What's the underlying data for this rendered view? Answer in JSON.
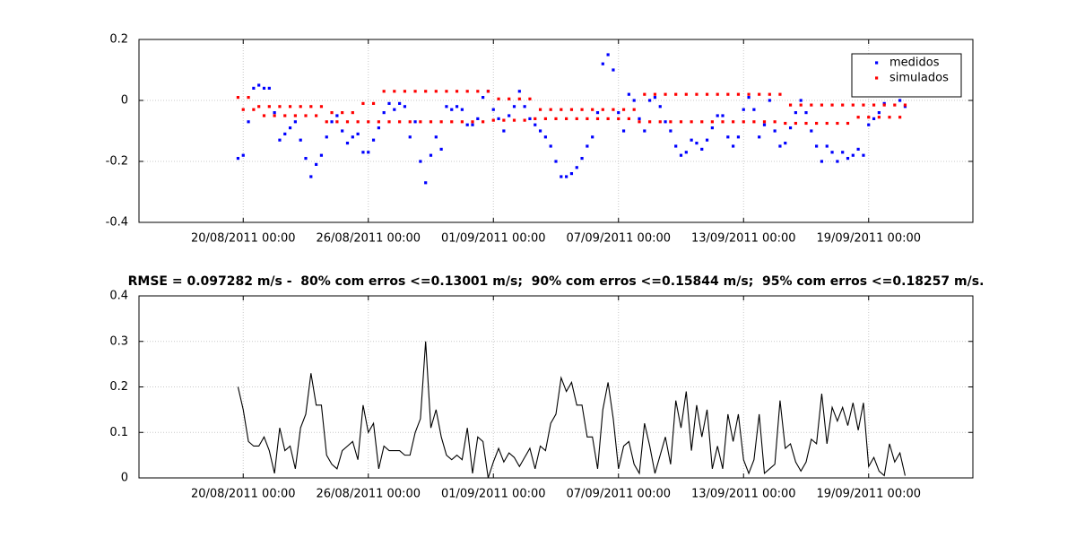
{
  "chart_data": [
    {
      "type": "scatter",
      "x": [
        "19/08/2011 18:00",
        "20/08/2011 00:00",
        "20/08/2011 06:00",
        "20/08/2011 12:00",
        "20/08/2011 18:00",
        "21/08/2011 00:00",
        "21/08/2011 06:00",
        "21/08/2011 12:00",
        "21/08/2011 18:00",
        "22/08/2011 00:00",
        "22/08/2011 06:00",
        "22/08/2011 12:00",
        "22/08/2011 18:00",
        "23/08/2011 00:00",
        "23/08/2011 06:00",
        "23/08/2011 12:00",
        "23/08/2011 18:00",
        "24/08/2011 00:00",
        "24/08/2011 06:00",
        "24/08/2011 12:00",
        "24/08/2011 18:00",
        "25/08/2011 00:00",
        "25/08/2011 06:00",
        "25/08/2011 12:00",
        "25/08/2011 18:00",
        "26/08/2011 00:00",
        "26/08/2011 06:00",
        "26/08/2011 12:00",
        "26/08/2011 18:00",
        "27/08/2011 00:00",
        "27/08/2011 06:00",
        "27/08/2011 12:00",
        "27/08/2011 18:00",
        "28/08/2011 00:00",
        "28/08/2011 06:00",
        "28/08/2011 12:00",
        "28/08/2011 18:00",
        "29/08/2011 00:00",
        "29/08/2011 06:00",
        "29/08/2011 12:00",
        "29/08/2011 18:00",
        "30/08/2011 00:00",
        "30/08/2011 06:00",
        "30/08/2011 12:00",
        "30/08/2011 18:00",
        "31/08/2011 00:00",
        "31/08/2011 06:00",
        "31/08/2011 12:00",
        "31/08/2011 18:00",
        "01/09/2011 00:00",
        "01/09/2011 06:00",
        "01/09/2011 12:00",
        "01/09/2011 18:00",
        "02/09/2011 00:00",
        "02/09/2011 06:00",
        "02/09/2011 12:00",
        "02/09/2011 18:00",
        "03/09/2011 00:00",
        "03/09/2011 06:00",
        "03/09/2011 12:00",
        "03/09/2011 18:00",
        "04/09/2011 00:00",
        "04/09/2011 06:00",
        "04/09/2011 12:00",
        "04/09/2011 18:00",
        "05/09/2011 00:00",
        "05/09/2011 06:00",
        "05/09/2011 12:00",
        "05/09/2011 18:00",
        "06/09/2011 00:00",
        "06/09/2011 06:00",
        "06/09/2011 12:00",
        "06/09/2011 18:00",
        "07/09/2011 00:00",
        "07/09/2011 06:00",
        "07/09/2011 12:00",
        "07/09/2011 18:00",
        "08/09/2011 00:00",
        "08/09/2011 06:00",
        "08/09/2011 12:00",
        "08/09/2011 18:00",
        "09/09/2011 00:00",
        "09/09/2011 06:00",
        "09/09/2011 12:00",
        "09/09/2011 18:00",
        "10/09/2011 00:00",
        "10/09/2011 06:00",
        "10/09/2011 12:00",
        "10/09/2011 18:00",
        "11/09/2011 00:00",
        "11/09/2011 06:00",
        "11/09/2011 12:00",
        "11/09/2011 18:00",
        "12/09/2011 00:00",
        "12/09/2011 06:00",
        "12/09/2011 12:00",
        "12/09/2011 18:00",
        "13/09/2011 00:00",
        "13/09/2011 06:00",
        "13/09/2011 12:00",
        "13/09/2011 18:00",
        "14/09/2011 00:00",
        "14/09/2011 06:00",
        "14/09/2011 12:00",
        "14/09/2011 18:00",
        "15/09/2011 00:00",
        "15/09/2011 06:00",
        "15/09/2011 12:00",
        "15/09/2011 18:00",
        "16/09/2011 00:00",
        "16/09/2011 06:00",
        "16/09/2011 12:00",
        "16/09/2011 18:00",
        "17/09/2011 00:00",
        "17/09/2011 06:00",
        "17/09/2011 12:00",
        "17/09/2011 18:00",
        "18/09/2011 00:00",
        "18/09/2011 06:00",
        "18/09/2011 12:00",
        "18/09/2011 18:00",
        "19/09/2011 00:00",
        "19/09/2011 06:00",
        "19/09/2011 12:00",
        "19/09/2011 18:00",
        "20/09/2011 00:00",
        "20/09/2011 06:00",
        "20/09/2011 12:00",
        "20/09/2011 18:00"
      ],
      "series": [
        {
          "name": "medidos",
          "color": "#0000ff",
          "values": [
            -0.19,
            -0.18,
            -0.07,
            0.04,
            0.05,
            0.04,
            0.04,
            -0.04,
            -0.13,
            -0.11,
            -0.09,
            -0.07,
            -0.13,
            -0.19,
            -0.25,
            -0.21,
            -0.18,
            -0.12,
            -0.07,
            -0.05,
            -0.1,
            -0.14,
            -0.12,
            -0.11,
            -0.17,
            -0.17,
            -0.13,
            -0.09,
            -0.04,
            -0.01,
            -0.03,
            -0.01,
            -0.02,
            -0.12,
            -0.07,
            -0.2,
            -0.27,
            -0.18,
            -0.12,
            -0.16,
            -0.02,
            -0.03,
            -0.02,
            -0.03,
            -0.08,
            -0.08,
            -0.06,
            0.01,
            0.03,
            -0.03,
            -0.06,
            -0.1,
            -0.05,
            -0.02,
            0.03,
            -0.02,
            -0.06,
            -0.08,
            -0.1,
            -0.12,
            -0.15,
            -0.2,
            -0.25,
            -0.25,
            -0.24,
            -0.22,
            -0.19,
            -0.15,
            -0.12,
            -0.04,
            0.12,
            0.15,
            0.1,
            -0.04,
            -0.1,
            0.02,
            0,
            -0.06,
            -0.1,
            0,
            0.01,
            -0.02,
            -0.07,
            -0.1,
            -0.15,
            -0.18,
            -0.17,
            -0.13,
            -0.14,
            -0.16,
            -0.13,
            -0.09,
            -0.05,
            -0.05,
            -0.12,
            -0.15,
            -0.12,
            -0.03,
            0.01,
            -0.03,
            -0.12,
            -0.08,
            0,
            -0.1,
            -0.15,
            -0.14,
            -0.09,
            -0.04,
            0,
            -0.04,
            -0.1,
            -0.15,
            -0.2,
            -0.15,
            -0.17,
            -0.2,
            -0.17,
            -0.19,
            -0.18,
            -0.16,
            -0.18,
            -0.08,
            -0.06,
            -0.04,
            -0.01,
            0.02,
            0.02,
            0,
            -0.02
          ]
        },
        {
          "name": "simulados",
          "color": "#ff0000",
          "values": [
            0.01,
            -0.03,
            0.01,
            -0.03,
            -0.02,
            -0.05,
            -0.02,
            -0.05,
            -0.02,
            -0.05,
            -0.02,
            -0.05,
            -0.02,
            -0.05,
            -0.02,
            -0.05,
            -0.02,
            -0.07,
            -0.04,
            -0.07,
            -0.04,
            -0.07,
            -0.04,
            -0.07,
            -0.01,
            -0.07,
            -0.01,
            -0.07,
            0.03,
            -0.07,
            0.03,
            -0.07,
            0.03,
            -0.07,
            0.03,
            -0.07,
            0.03,
            -0.07,
            0.03,
            -0.07,
            0.03,
            -0.07,
            0.03,
            -0.07,
            0.03,
            -0.07,
            0.03,
            -0.07,
            0.03,
            -0.065,
            0.005,
            -0.065,
            0.005,
            -0.065,
            0.005,
            -0.065,
            0.005,
            -0.06,
            -0.03,
            -0.06,
            -0.03,
            -0.06,
            -0.03,
            -0.06,
            -0.03,
            -0.06,
            -0.03,
            -0.06,
            -0.03,
            -0.06,
            -0.03,
            -0.06,
            -0.03,
            -0.06,
            -0.03,
            -0.06,
            -0.03,
            -0.07,
            0.02,
            -0.07,
            0.02,
            -0.07,
            0.02,
            -0.07,
            0.02,
            -0.07,
            0.02,
            -0.07,
            0.02,
            -0.07,
            0.02,
            -0.07,
            0.02,
            -0.07,
            0.02,
            -0.07,
            0.02,
            -0.07,
            0.02,
            -0.07,
            0.02,
            -0.07,
            0.02,
            -0.07,
            0.02,
            -0.075,
            -0.015,
            -0.075,
            -0.015,
            -0.075,
            -0.015,
            -0.075,
            -0.015,
            -0.075,
            -0.015,
            -0.075,
            -0.015,
            -0.075,
            -0.015,
            -0.055,
            -0.015,
            -0.055,
            -0.015,
            -0.055,
            -0.015,
            -0.055,
            -0.015,
            -0.055,
            -0.015
          ]
        }
      ],
      "xlim": [
        "15/08/2011 00:00",
        "24/09/2011 00:00"
      ],
      "xticks": [
        "20/08/2011 00:00",
        "26/08/2011 00:00",
        "01/09/2011 00:00",
        "07/09/2011 00:00",
        "13/09/2011 00:00",
        "19/09/2011 00:00"
      ],
      "ylim": [
        -0.4,
        0.2
      ],
      "yticks": [
        -0.4,
        -0.2,
        0,
        0.2
      ],
      "grid": true,
      "legend": "upper right"
    },
    {
      "type": "line",
      "title": "RMSE = 0.097282 m/s -  80% com erros <=0.13001 m/s;  90% com erros <=0.15844 m/s;  95% com erros <=0.18257 m/s.",
      "x": [
        "19/08/2011 18:00",
        "20/08/2011 00:00",
        "20/08/2011 06:00",
        "20/08/2011 12:00",
        "20/08/2011 18:00",
        "21/08/2011 00:00",
        "21/08/2011 06:00",
        "21/08/2011 12:00",
        "21/08/2011 18:00",
        "22/08/2011 00:00",
        "22/08/2011 06:00",
        "22/08/2011 12:00",
        "22/08/2011 18:00",
        "23/08/2011 00:00",
        "23/08/2011 06:00",
        "23/08/2011 12:00",
        "23/08/2011 18:00",
        "24/08/2011 00:00",
        "24/08/2011 06:00",
        "24/08/2011 12:00",
        "24/08/2011 18:00",
        "25/08/2011 00:00",
        "25/08/2011 06:00",
        "25/08/2011 12:00",
        "25/08/2011 18:00",
        "26/08/2011 00:00",
        "26/08/2011 06:00",
        "26/08/2011 12:00",
        "26/08/2011 18:00",
        "27/08/2011 00:00",
        "27/08/2011 06:00",
        "27/08/2011 12:00",
        "27/08/2011 18:00",
        "28/08/2011 00:00",
        "28/08/2011 06:00",
        "28/08/2011 12:00",
        "28/08/2011 18:00",
        "29/08/2011 00:00",
        "29/08/2011 06:00",
        "29/08/2011 12:00",
        "29/08/2011 18:00",
        "30/08/2011 00:00",
        "30/08/2011 06:00",
        "30/08/2011 12:00",
        "30/08/2011 18:00",
        "31/08/2011 00:00",
        "31/08/2011 06:00",
        "31/08/2011 12:00",
        "31/08/2011 18:00",
        "01/09/2011 00:00",
        "01/09/2011 06:00",
        "01/09/2011 12:00",
        "01/09/2011 18:00",
        "02/09/2011 00:00",
        "02/09/2011 06:00",
        "02/09/2011 12:00",
        "02/09/2011 18:00",
        "03/09/2011 00:00",
        "03/09/2011 06:00",
        "03/09/2011 12:00",
        "03/09/2011 18:00",
        "04/09/2011 00:00",
        "04/09/2011 06:00",
        "04/09/2011 12:00",
        "04/09/2011 18:00",
        "05/09/2011 00:00",
        "05/09/2011 06:00",
        "05/09/2011 12:00",
        "05/09/2011 18:00",
        "06/09/2011 00:00",
        "06/09/2011 06:00",
        "06/09/2011 12:00",
        "06/09/2011 18:00",
        "07/09/2011 00:00",
        "07/09/2011 06:00",
        "07/09/2011 12:00",
        "07/09/2011 18:00",
        "08/09/2011 00:00",
        "08/09/2011 06:00",
        "08/09/2011 12:00",
        "08/09/2011 18:00",
        "09/09/2011 00:00",
        "09/09/2011 06:00",
        "09/09/2011 12:00",
        "09/09/2011 18:00",
        "10/09/2011 00:00",
        "10/09/2011 06:00",
        "10/09/2011 12:00",
        "10/09/2011 18:00",
        "11/09/2011 00:00",
        "11/09/2011 06:00",
        "11/09/2011 12:00",
        "11/09/2011 18:00",
        "12/09/2011 00:00",
        "12/09/2011 06:00",
        "12/09/2011 12:00",
        "12/09/2011 18:00",
        "13/09/2011 00:00",
        "13/09/2011 06:00",
        "13/09/2011 12:00",
        "13/09/2011 18:00",
        "14/09/2011 00:00",
        "14/09/2011 06:00",
        "14/09/2011 12:00",
        "14/09/2011 18:00",
        "15/09/2011 00:00",
        "15/09/2011 06:00",
        "15/09/2011 12:00",
        "15/09/2011 18:00",
        "16/09/2011 00:00",
        "16/09/2011 06:00",
        "16/09/2011 12:00",
        "16/09/2011 18:00",
        "17/09/2011 00:00",
        "17/09/2011 06:00",
        "17/09/2011 12:00",
        "17/09/2011 18:00",
        "18/09/2011 00:00",
        "18/09/2011 06:00",
        "18/09/2011 12:00",
        "18/09/2011 18:00",
        "19/09/2011 00:00",
        "19/09/2011 06:00",
        "19/09/2011 12:00",
        "19/09/2011 18:00",
        "20/09/2011 00:00",
        "20/09/2011 06:00",
        "20/09/2011 12:00",
        "20/09/2011 18:00"
      ],
      "values": [
        0.2,
        0.15,
        0.08,
        0.07,
        0.07,
        0.09,
        0.06,
        0.01,
        0.11,
        0.06,
        0.07,
        0.02,
        0.11,
        0.14,
        0.23,
        0.16,
        0.16,
        0.05,
        0.03,
        0.02,
        0.06,
        0.07,
        0.08,
        0.04,
        0.16,
        0.1,
        0.12,
        0.02,
        0.07,
        0.06,
        0.06,
        0.06,
        0.05,
        0.05,
        0.1,
        0.13,
        0.3,
        0.11,
        0.15,
        0.09,
        0.05,
        0.04,
        0.05,
        0.04,
        0.11,
        0.01,
        0.09,
        0.08,
        0,
        0.035,
        0.065,
        0.035,
        0.055,
        0.045,
        0.025,
        0.045,
        0.065,
        0.02,
        0.07,
        0.06,
        0.12,
        0.14,
        0.22,
        0.19,
        0.21,
        0.16,
        0.16,
        0.09,
        0.09,
        0.02,
        0.15,
        0.21,
        0.13,
        0.02,
        0.07,
        0.08,
        0.03,
        0.01,
        0.12,
        0.07,
        0.01,
        0.05,
        0.09,
        0.03,
        0.17,
        0.11,
        0.19,
        0.06,
        0.16,
        0.09,
        0.15,
        0.02,
        0.07,
        0.02,
        0.14,
        0.08,
        0.14,
        0.04,
        0.01,
        0.04,
        0.14,
        0.01,
        0.02,
        0.03,
        0.17,
        0.065,
        0.075,
        0.035,
        0.015,
        0.035,
        0.085,
        0.075,
        0.185,
        0.075,
        0.155,
        0.125,
        0.155,
        0.115,
        0.165,
        0.105,
        0.165,
        0.025,
        0.045,
        0.015,
        0.005,
        0.075,
        0.035,
        0.055,
        0.005
      ],
      "color": "#000000",
      "xlim": [
        "15/08/2011 00:00",
        "24/09/2011 00:00"
      ],
      "xticks": [
        "20/08/2011 00:00",
        "26/08/2011 00:00",
        "01/09/2011 00:00",
        "07/09/2011 00:00",
        "13/09/2011 00:00",
        "19/09/2011 00:00"
      ],
      "ylim": [
        0,
        0.4
      ],
      "yticks": [
        0,
        0.1,
        0.2,
        0.3,
        0.4
      ],
      "grid": true
    }
  ]
}
